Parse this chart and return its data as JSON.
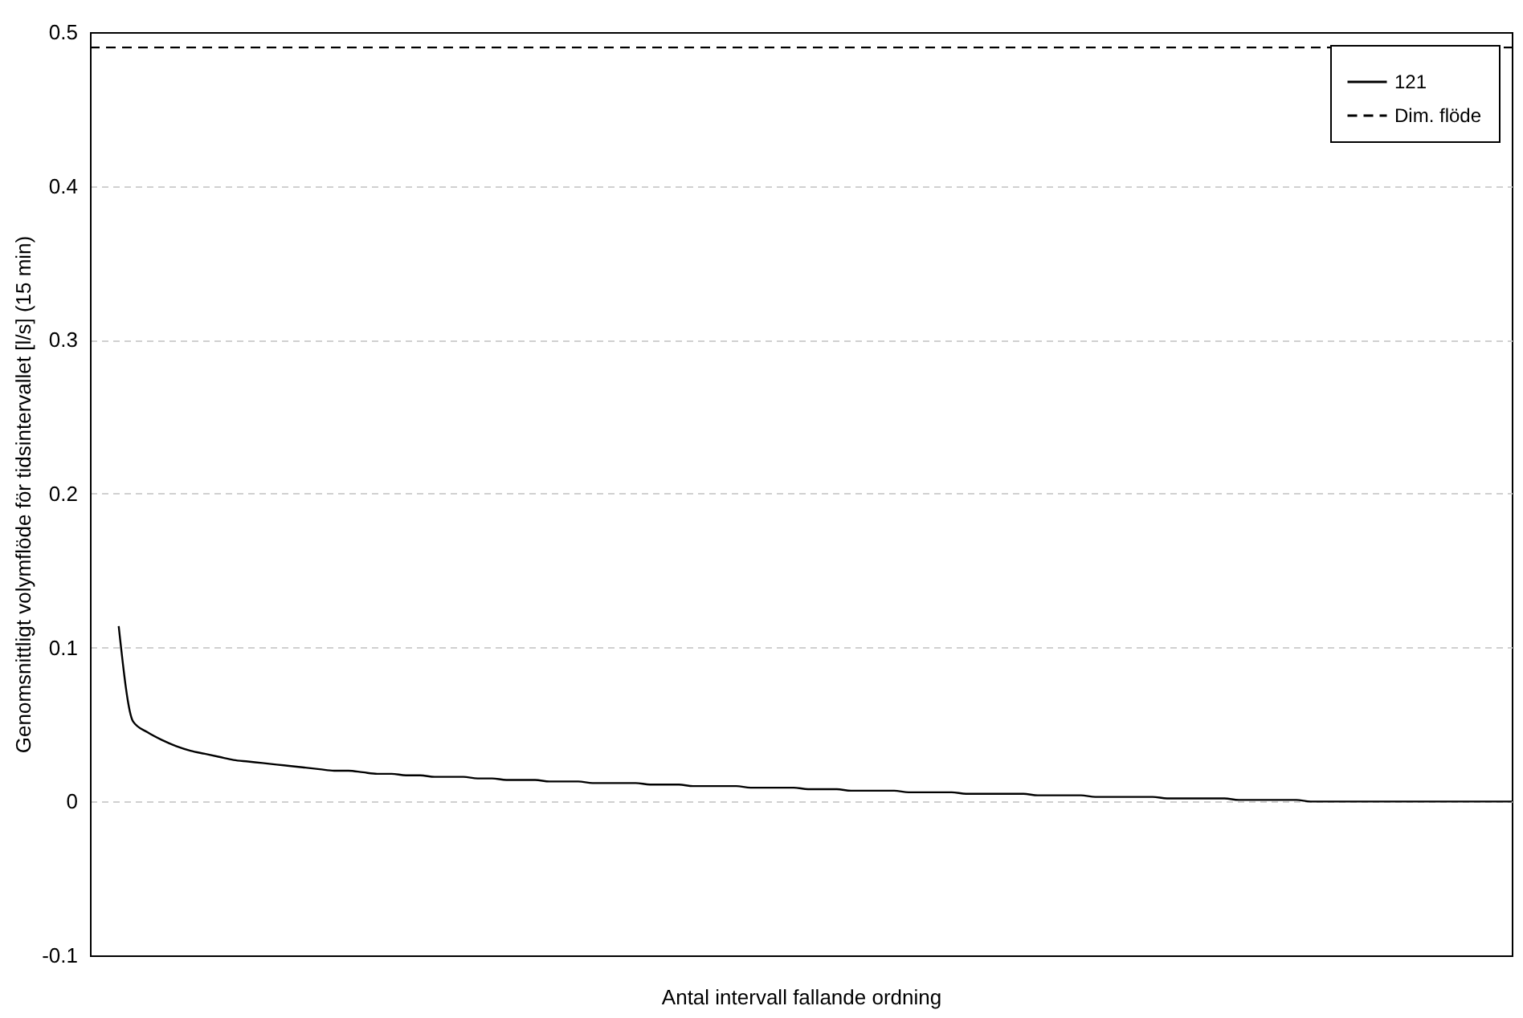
{
  "chart_data": {
    "type": "line",
    "xlabel": "Antal intervall fallande ordning",
    "ylabel": "Genomsnittligt volymflöde för tidsintervallet [l/s] (15 min)",
    "categories": [
      null,
      null,
      null,
      null,
      null,
      null,
      null,
      null,
      null,
      null,
      null,
      null,
      null,
      null,
      null,
      null,
      null,
      null,
      null,
      null,
      null,
      null,
      null,
      null,
      null,
      null,
      null,
      null,
      null,
      null,
      null,
      null,
      null,
      null,
      null,
      null,
      null,
      null,
      null,
      null,
      null,
      null,
      null,
      null,
      null,
      null,
      null,
      null,
      null,
      null,
      null,
      null,
      null,
      null,
      null,
      null,
      null,
      null,
      null,
      null,
      null,
      null,
      null,
      null,
      null,
      null,
      null,
      null,
      null,
      null,
      null,
      null,
      null,
      null,
      null,
      null,
      null,
      null,
      null,
      null,
      null,
      null,
      null,
      null,
      null,
      null,
      null,
      null,
      null,
      null,
      null,
      null,
      null,
      null,
      null,
      null,
      null,
      null,
      null,
      null
    ],
    "series": [
      {
        "name": "121",
        "color": "#000000",
        "line_style": "solid",
        "values": [
          null,
          null,
          0.114,
          0.052,
          0.045,
          0.04,
          0.036,
          0.033,
          0.031,
          0.029,
          0.027,
          0.026,
          0.025,
          0.024,
          0.023,
          0.022,
          0.021,
          0.02,
          0.02,
          0.019,
          0.018,
          0.018,
          0.017,
          0.017,
          0.016,
          0.016,
          0.016,
          0.015,
          0.015,
          0.014,
          0.014,
          0.014,
          0.013,
          0.013,
          0.013,
          0.012,
          0.012,
          0.012,
          0.012,
          0.011,
          0.011,
          0.011,
          0.01,
          0.01,
          0.01,
          0.01,
          0.009,
          0.009,
          0.009,
          0.009,
          0.008,
          0.008,
          0.008,
          0.007,
          0.007,
          0.007,
          0.007,
          0.006,
          0.006,
          0.006,
          0.006,
          0.005,
          0.005,
          0.005,
          0.005,
          0.005,
          0.004,
          0.004,
          0.004,
          0.004,
          0.003,
          0.003,
          0.003,
          0.003,
          0.003,
          0.002,
          0.002,
          0.002,
          0.002,
          0.002,
          0.001,
          0.001,
          0.001,
          0.001,
          0.001,
          0,
          0,
          0,
          0,
          0,
          0,
          0,
          0,
          0,
          0,
          0,
          0,
          0,
          0,
          0
        ]
      },
      {
        "name": "Dim. flöde",
        "color": "#000000",
        "line_style": "dashed",
        "values": [
          0.49,
          0.49,
          0.49,
          0.49,
          0.49,
          0.49,
          0.49,
          0.49,
          0.49,
          0.49,
          0.49,
          0.49,
          0.49,
          0.49,
          0.49,
          0.49,
          0.49,
          0.49,
          0.49,
          0.49,
          0.49,
          0.49,
          0.49,
          0.49,
          0.49,
          0.49,
          0.49,
          0.49,
          0.49,
          0.49,
          0.49,
          0.49,
          0.49,
          0.49,
          0.49,
          0.49,
          0.49,
          0.49,
          0.49,
          0.49,
          0.49,
          0.49,
          0.49,
          0.49,
          0.49,
          0.49,
          0.49,
          0.49,
          0.49,
          0.49,
          0.49,
          0.49,
          0.49,
          0.49,
          0.49,
          0.49,
          0.49,
          0.49,
          0.49,
          0.49,
          0.49,
          0.49,
          0.49,
          0.49,
          0.49,
          0.49,
          0.49,
          0.49,
          0.49,
          0.49,
          0.49,
          0.49,
          0.49,
          0.49,
          0.49,
          0.49,
          0.49,
          0.49,
          0.49,
          0.49,
          0.49,
          0.49,
          0.49,
          0.49,
          0.49,
          0.49,
          0.49,
          0.49,
          0.49,
          0.49,
          0.49,
          0.49,
          0.49,
          0.49,
          0.49,
          0.49,
          0.49,
          0.49,
          0.49,
          0.49
        ]
      }
    ],
    "ylim": [
      -0.1,
      0.5
    ],
    "yticks": [
      -0.1,
      0,
      0.1,
      0.2,
      0.3,
      0.4,
      0.5
    ],
    "grid": "y",
    "legend": "top right"
  }
}
